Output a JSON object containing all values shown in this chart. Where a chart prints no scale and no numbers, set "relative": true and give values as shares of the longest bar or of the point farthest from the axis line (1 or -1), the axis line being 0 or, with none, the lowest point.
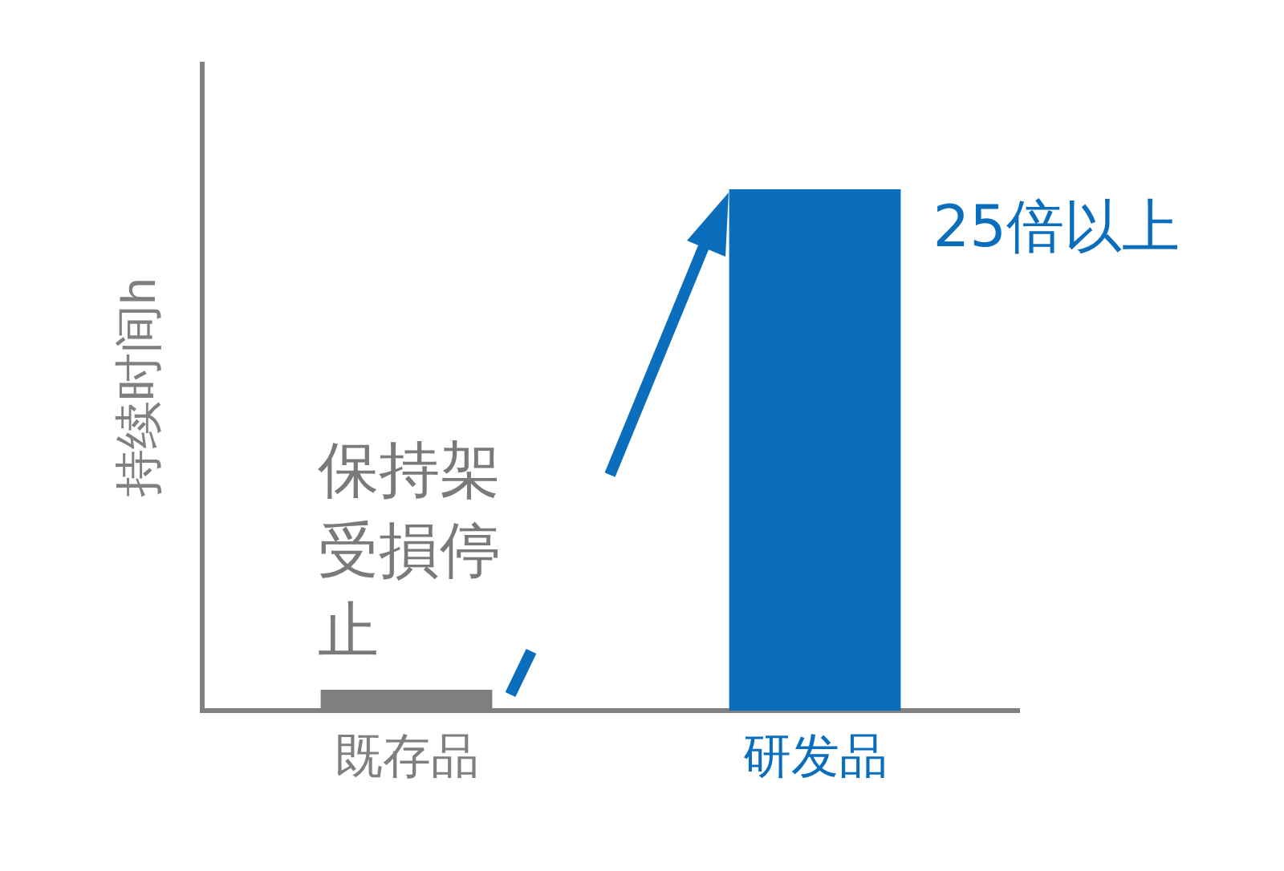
{
  "chart_data": {
    "type": "bar",
    "relative": true,
    "ylabel": "持续时间h",
    "categories": [
      "既存品",
      "研发品"
    ],
    "values": [
      0.04,
      1
    ],
    "colors": [
      "#7f7f7f",
      "#0a6ebd"
    ],
    "annotations": [
      {
        "text": "25倍以上",
        "x": "研发品",
        "y": 1
      },
      "保持架受損停止"
    ],
    "grid": false,
    "legend": false
  }
}
